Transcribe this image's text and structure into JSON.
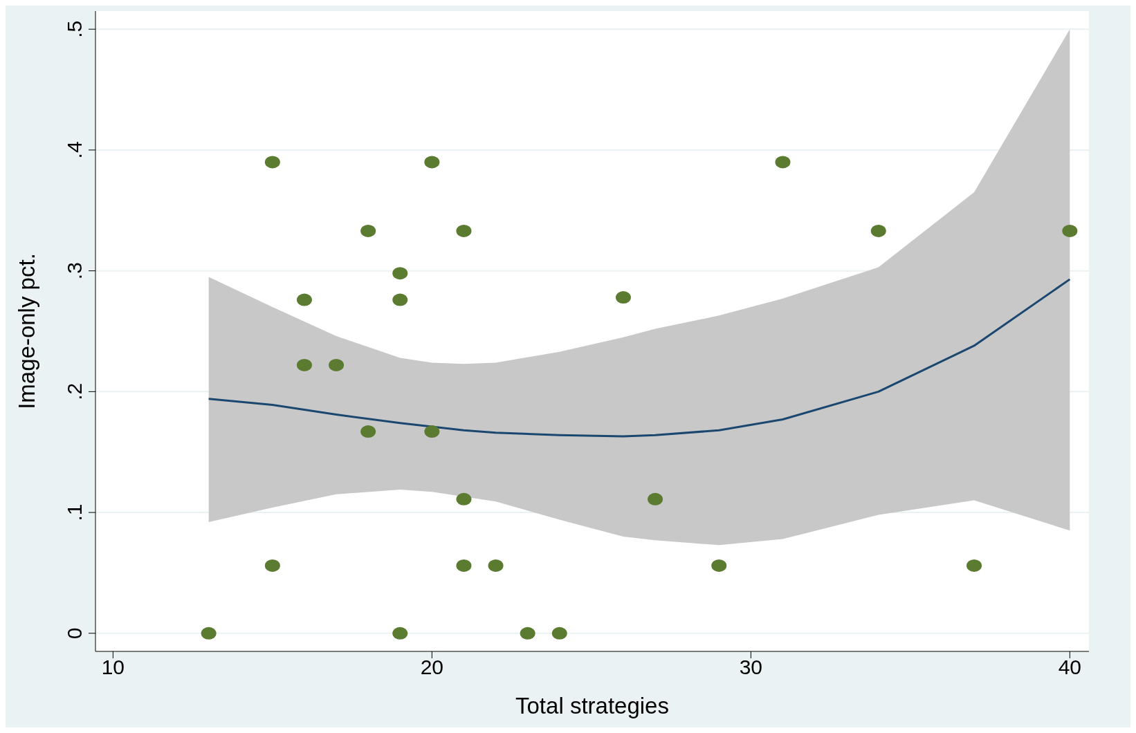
{
  "chart_data": {
    "type": "scatter",
    "xlabel": "Total strategies",
    "ylabel": "Image-only pct.",
    "xlim": [
      9.45,
      40.6
    ],
    "xticks": [
      10,
      20,
      30,
      40
    ],
    "ylim": [
      -0.015,
      0.515
    ],
    "yticks": [
      {
        "value": 0,
        "label": "0"
      },
      {
        "value": 0.1,
        "label": ".1"
      },
      {
        "value": 0.2,
        "label": ".2"
      },
      {
        "value": 0.3,
        "label": ".3"
      },
      {
        "value": 0.4,
        "label": ".4"
      },
      {
        "value": 0.5,
        "label": ".5"
      }
    ],
    "grid": "y",
    "legend": false,
    "series": [
      {
        "type": "line",
        "color": "#1a476f",
        "marker": "none",
        "line_style": "solid",
        "x": [
          13,
          15,
          17,
          19,
          20,
          21,
          22,
          24,
          26,
          27,
          29,
          31,
          34,
          37,
          40
        ],
        "values": [
          0.194,
          0.189,
          0.181,
          0.174,
          0.171,
          0.168,
          0.166,
          0.164,
          0.163,
          0.164,
          0.168,
          0.177,
          0.2,
          0.238,
          0.293
        ],
        "lower": [
          0.092,
          0.104,
          0.115,
          0.119,
          0.117,
          0.113,
          0.109,
          0.094,
          0.08,
          0.077,
          0.073,
          0.078,
          0.098,
          0.11,
          0.085
        ],
        "upper": [
          0.295,
          0.27,
          0.246,
          0.228,
          0.224,
          0.223,
          0.224,
          0.233,
          0.245,
          0.252,
          0.263,
          0.277,
          0.303,
          0.365,
          0.5
        ]
      },
      {
        "color": "#5b7b30",
        "marker": "circle",
        "x": [
          13,
          15,
          15,
          16,
          16,
          17,
          18,
          18,
          19,
          19,
          19,
          20,
          20,
          21,
          21,
          21,
          22,
          23,
          24,
          26,
          27,
          29,
          31,
          34,
          37,
          40
        ],
        "values": [
          0,
          0.39,
          0.056,
          0.276,
          0.222,
          0.222,
          0.333,
          0.167,
          0.298,
          0.276,
          0,
          0.39,
          0.167,
          0.333,
          0.111,
          0.056,
          0.056,
          0,
          0,
          0.278,
          0.111,
          0.056,
          0.39,
          0.333,
          0.056,
          0.333
        ]
      }
    ]
  }
}
